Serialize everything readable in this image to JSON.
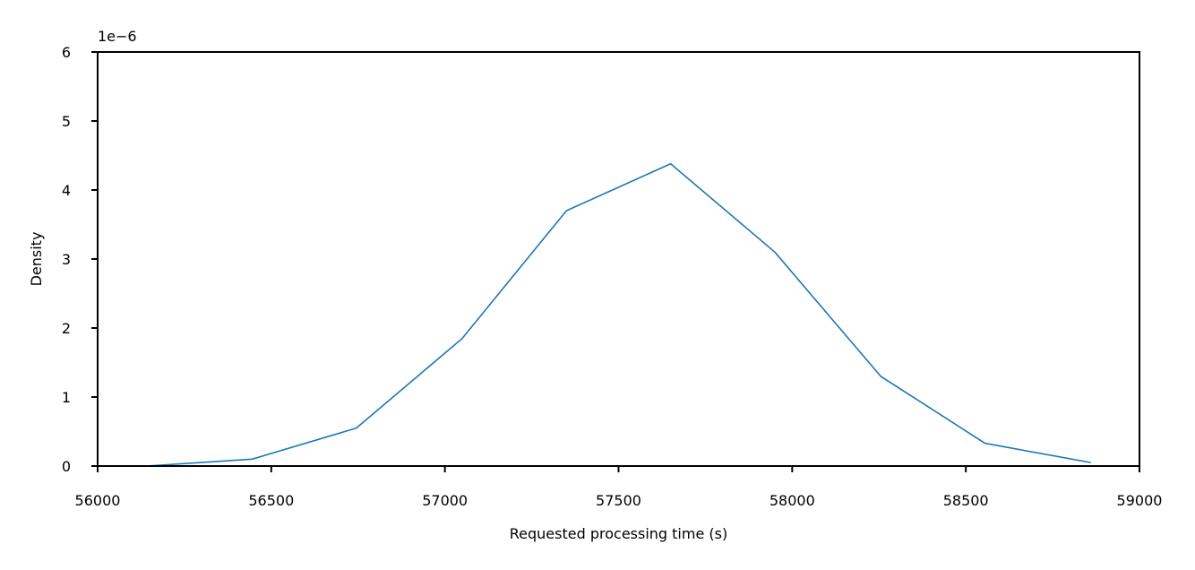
{
  "chart_data": {
    "type": "line",
    "title": "",
    "xlabel": "Requested processing time (s)",
    "ylabel": "Density",
    "y_offset_label": "1e−6",
    "y_scale_factor": 1e-06,
    "xlim": [
      56000,
      59000
    ],
    "ylim": [
      0,
      6
    ],
    "xticks": [
      56000,
      56500,
      57000,
      57500,
      58000,
      58500,
      59000
    ],
    "yticks": [
      0,
      1,
      2,
      3,
      4,
      5,
      6
    ],
    "grid": false,
    "series": [
      {
        "color": "#1f77b4",
        "x": [
          56000,
          56140,
          56445,
          56745,
          57050,
          57350,
          57650,
          57950,
          58255,
          58555,
          58860
        ],
        "y": [
          0.0,
          0.0,
          0.1,
          0.55,
          1.85,
          3.7,
          4.38,
          3.1,
          1.3,
          0.33,
          0.05
        ]
      }
    ]
  }
}
